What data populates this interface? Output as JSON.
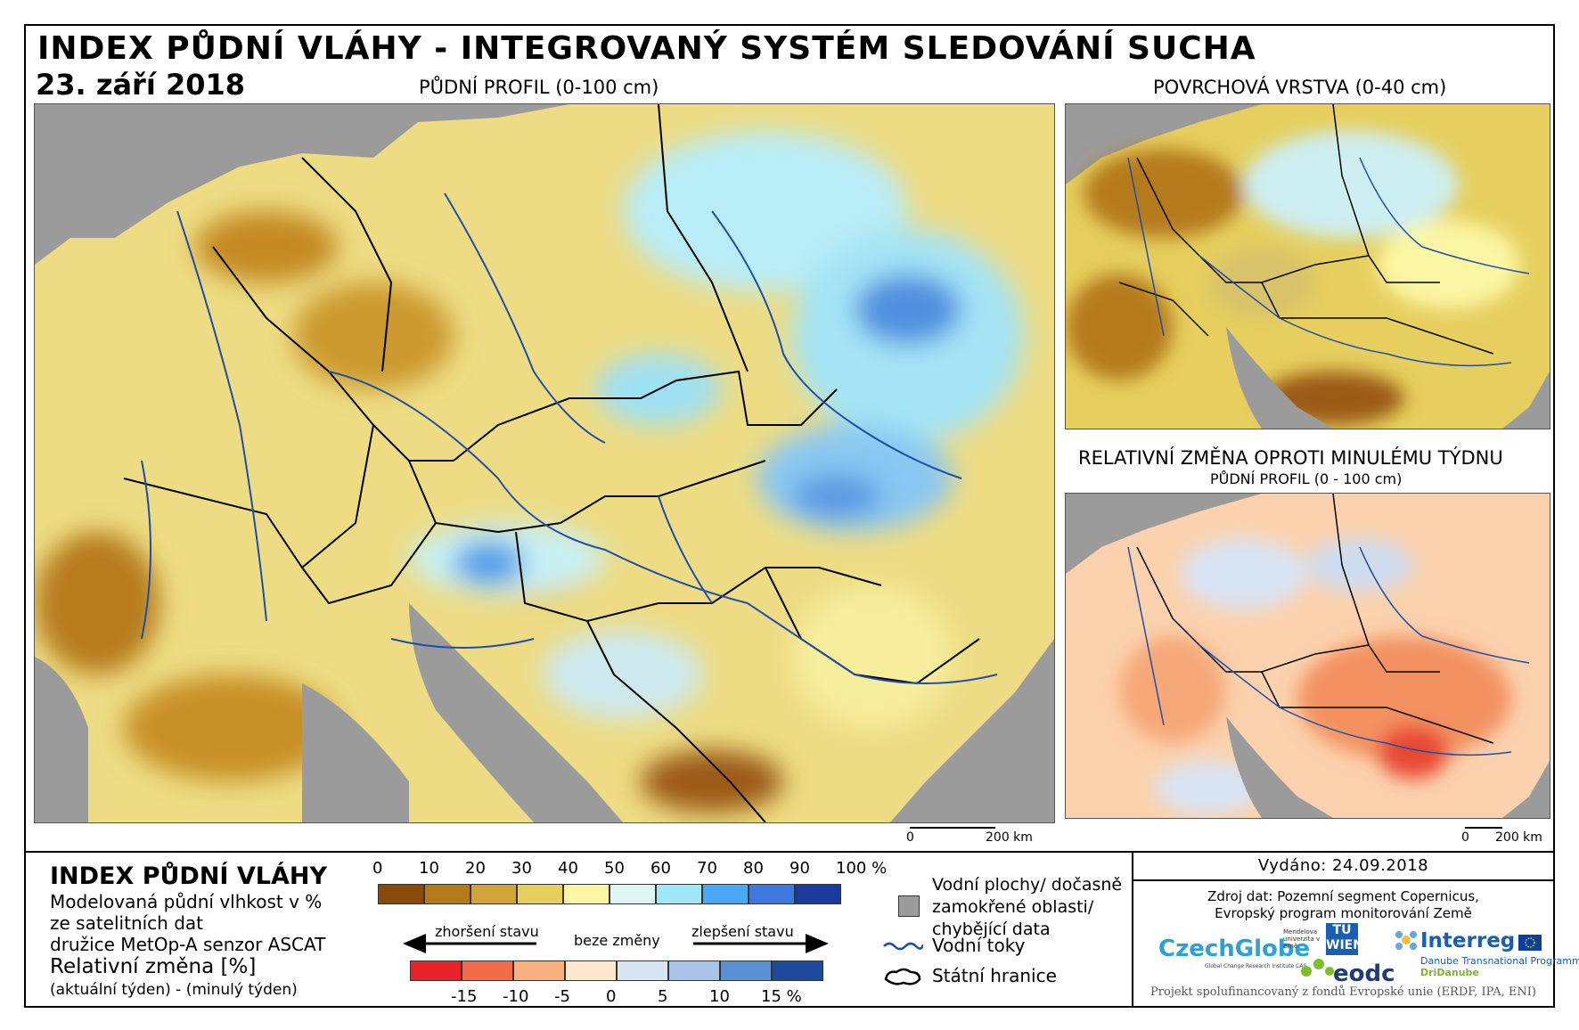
{
  "header": {
    "title": "INDEX PŮDNÍ VLÁHY - INTEGROVANÝ SYSTÉM SLEDOVÁNÍ SUCHA",
    "date": "23. září 2018"
  },
  "maps": {
    "main": {
      "label": "PŮDNÍ PROFIL (0-100 cm)",
      "scale_zero": "0",
      "scale_end": "200 km"
    },
    "surface": {
      "label": "POVRCHOVÁ VRSTVA (0-40 cm)"
    },
    "change": {
      "label": "RELATIVNÍ ZMĚNA OPROTI MINULÉMU TÝDNU",
      "sublabel": "PŮDNÍ PROFIL (0 - 100 cm)",
      "scale_zero": "0",
      "scale_end": "200 km"
    }
  },
  "legend": {
    "title": "INDEX PŮDNÍ VLÁHY",
    "desc": [
      "Modelovaná půdní vlhkost v %",
      "ze satelitních dat",
      "družice MetOp-A senzor ASCAT"
    ],
    "change_title": "Relativní změna [%]",
    "change_desc": "(aktuální týden) - (minulý týden)",
    "index_ticks": [
      "0",
      "10",
      "20",
      "30",
      "40",
      "50",
      "60",
      "70",
      "80",
      "90",
      "100 %"
    ],
    "index_colors": [
      "#8a4a08",
      "#b57a1a",
      "#cfa43a",
      "#e6cf5e",
      "#fbf6a4",
      "#dff7f3",
      "#9ee8f6",
      "#4aa8f4",
      "#3d78dc",
      "#1c3a9c"
    ],
    "change_ticks": [
      "-15",
      "-10",
      "-5",
      "0",
      "5",
      "10",
      "15 %"
    ],
    "change_colors": [
      "#e8242a",
      "#f26a47",
      "#f8b07e",
      "#fde8cf",
      "#d8e4f4",
      "#a7c4e8",
      "#5a90d6",
      "#1d4a9c"
    ],
    "worse": "zhoršení stavu",
    "nochange": "beze změny",
    "better": "zlepšení stavu",
    "water_label": "Vodní plochy/ dočasně zamokřené oblasti/ chybějící data",
    "rivers_label": "Vodní toky",
    "borders_label": "Státní hranice"
  },
  "footer": {
    "issued": "Vydáno: 24.09.2018",
    "source_1": "Zdroj dat: Pozemní segment Copernicus,",
    "source_2": "Evropský program monitorování Země",
    "logo_czechglobe": "CzechGlobe",
    "logo_czechglobe_sub": "Global Change Research Institute CAS",
    "logo_mendel": "Mendelova univerzita v Brně",
    "logo_tu": "TU WIEN",
    "logo_eodc": "eodc",
    "logo_interreg": "Interreg",
    "logo_interreg_sub": "Danube Transnational Programme",
    "logo_dridanube": "DriDanube",
    "funding": "Projekt spolufinancovaný z fondů Evropské unie (ERDF, IPA, ENI)"
  },
  "colors": {
    "land_gray": "#9b9b9b",
    "river": "#1f4ea8",
    "border": "#000000"
  }
}
